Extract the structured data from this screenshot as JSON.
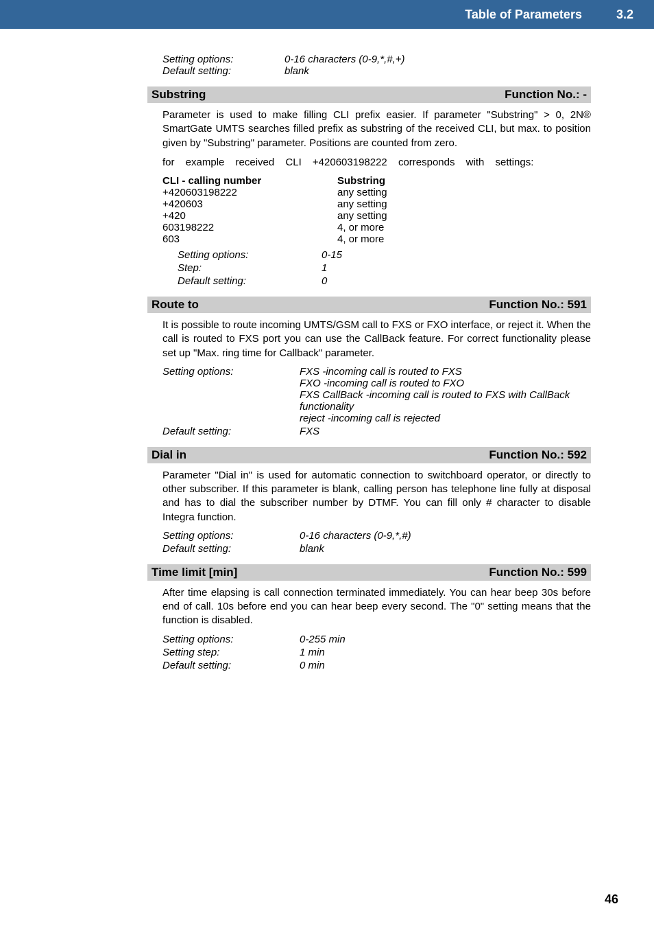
{
  "header": {
    "title": "Table of Parameters",
    "section": "3.2",
    "bg_color": "#336699",
    "text_color": "#ffffff"
  },
  "top_opts": {
    "setting_options_label": "Setting options:",
    "setting_options_value": "0-16 characters (0-9,*,#,+)",
    "default_setting_label": "Default setting:",
    "default_setting_value": "blank"
  },
  "substring": {
    "title": "Substring",
    "func": "Function No.: -",
    "para": "Parameter is used to make filling CLI prefix easier. If parameter \"Substring\" > 0, 2N® SmartGate UMTS searches filled prefix as substring of the received CLI, but max. to position given by \"Substring\" parameter. Positions are counted from zero.",
    "example_line": "for example received CLI +420603198222 corresponds with settings:",
    "table": {
      "col1_header": "CLI - calling number",
      "col3_header": "Substring",
      "rows": [
        {
          "c1": " +420603198222",
          "c3": "any setting"
        },
        {
          "c1": "+420603",
          "c3": "any setting"
        },
        {
          "c1": "+420",
          "c3": "any setting"
        },
        {
          "c1": "603198222",
          "c3": "4, or more"
        },
        {
          "c1": "603",
          "c3": "4, or more"
        }
      ]
    },
    "opts": [
      {
        "lab": "Setting options:",
        "val": "0-15"
      },
      {
        "lab": "Step:",
        "val": "1"
      },
      {
        "lab": "Default setting:",
        "val": "0"
      }
    ]
  },
  "route_to": {
    "title": "Route to",
    "func": "Function No.: 591",
    "para": "It is possible to route incoming UMTS/GSM call to FXS or FXO interface, or reject it. When the call is routed to FXS port you can use the CallBack feature. For correct functionality please set up \"Max. ring time for Callback\" parameter.",
    "setting_options_label": "Setting options:",
    "setting_options_lines": [
      "FXS -incoming call is routed to FXS",
      "FXO -incoming call is routed to FXO",
      "FXS CallBack -incoming call is routed to FXS with CallBack functionality",
      "reject -incoming call is rejected"
    ],
    "default_setting_label": "Default setting:",
    "default_setting_value": "FXS"
  },
  "dial_in": {
    "title": "Dial in",
    "func": "Function No.: 592",
    "para": "Parameter \"Dial in\" is used for automatic connection to switchboard operator, or directly to other subscriber. If this parameter is blank, calling person has telephone line fully at disposal and has to dial the subscriber number by DTMF. You can fill only # character to disable Integra function.",
    "opts": [
      {
        "lab": "Setting options:",
        "val": "0-16 characters (0-9,*,#)"
      },
      {
        "lab": "Default setting:",
        "val": "blank"
      }
    ]
  },
  "time_limit": {
    "title": "Time limit [min]",
    "func": "Function No.: 599",
    "para": "After time elapsing is call connection terminated immediately. You can hear beep 30s before end of call. 10s before end you can hear beep every second. The \"0\" setting means that the function is disabled.",
    "opts": [
      {
        "lab": "Setting options:",
        "val": "0-255 min"
      },
      {
        "lab": "Setting step:",
        "val": "1 min"
      },
      {
        "lab": "Default setting:",
        "val": "0 min"
      }
    ]
  },
  "page_number": "46"
}
